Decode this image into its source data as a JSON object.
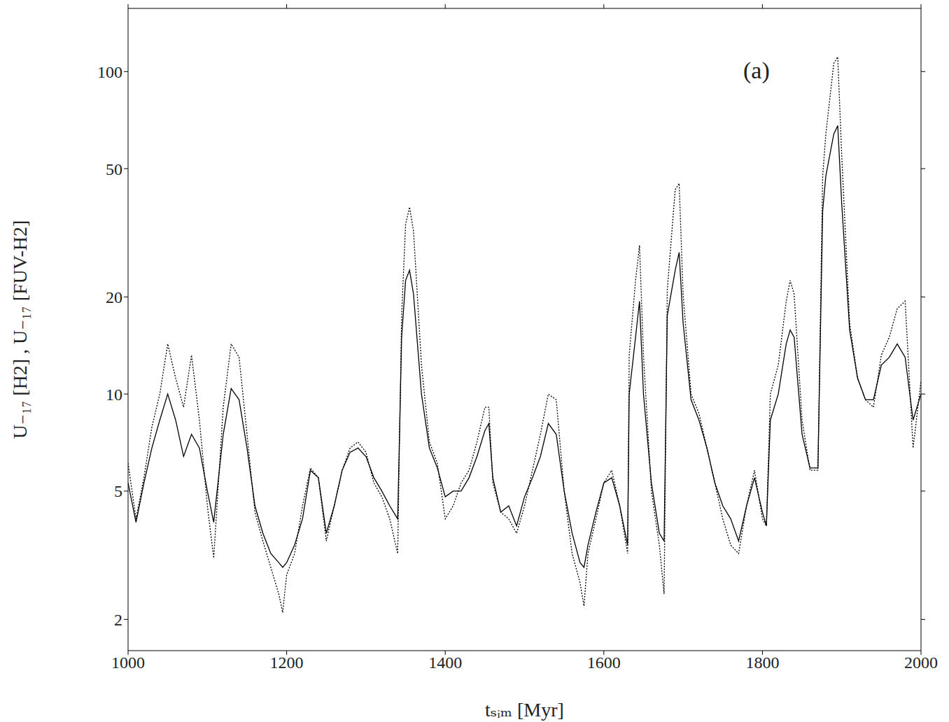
{
  "chart_data": {
    "type": "line",
    "xlabel": "tₛᵢₘ [Myr]",
    "ylabel": "U₋₁₇ [H2] , U₋₁₇ [FUV-H2]",
    "annotation": "(a)",
    "log": "y",
    "grid": false,
    "x": [
      1000,
      1010,
      1020,
      1030,
      1040,
      1050,
      1060,
      1070,
      1080,
      1090,
      1100,
      1108,
      1120,
      1130,
      1140,
      1150,
      1160,
      1170,
      1180,
      1190,
      1195,
      1200,
      1210,
      1220,
      1230,
      1240,
      1250,
      1260,
      1270,
      1280,
      1290,
      1300,
      1310,
      1320,
      1330,
      1340,
      1345,
      1350,
      1355,
      1360,
      1370,
      1380,
      1390,
      1400,
      1410,
      1420,
      1430,
      1440,
      1450,
      1455,
      1460,
      1470,
      1480,
      1490,
      1500,
      1510,
      1520,
      1530,
      1540,
      1550,
      1560,
      1570,
      1575,
      1580,
      1590,
      1600,
      1610,
      1620,
      1630,
      1632,
      1640,
      1645,
      1650,
      1660,
      1670,
      1676,
      1680,
      1690,
      1695,
      1700,
      1710,
      1720,
      1730,
      1740,
      1750,
      1760,
      1770,
      1780,
      1790,
      1800,
      1805,
      1810,
      1820,
      1830,
      1835,
      1840,
      1850,
      1860,
      1870,
      1876,
      1880,
      1890,
      1895,
      1900,
      1910,
      1920,
      1930,
      1940,
      1950,
      1960,
      1970,
      1980,
      1990,
      2000
    ],
    "series": [
      {
        "color": "#000000",
        "line_style": "solid",
        "values": [
          5.3,
          4.0,
          5.3,
          6.8,
          8.3,
          10,
          8.3,
          6.4,
          7.5,
          6.8,
          5.0,
          4.0,
          7.5,
          10.4,
          9.6,
          6.8,
          4.5,
          3.7,
          3.2,
          3.0,
          2.9,
          3.0,
          3.4,
          4.1,
          5.8,
          5.5,
          3.7,
          4.5,
          5.8,
          6.6,
          6.8,
          6.4,
          5.5,
          5.0,
          4.5,
          4.1,
          15,
          22.5,
          24.2,
          20.4,
          10,
          6.8,
          5.9,
          4.8,
          5.0,
          5.0,
          5.5,
          6.4,
          7.7,
          8.1,
          5.5,
          4.3,
          4.5,
          3.9,
          4.8,
          5.5,
          6.4,
          8.1,
          7.5,
          5.0,
          3.7,
          3.0,
          2.9,
          3.4,
          4.3,
          5.3,
          5.5,
          4.5,
          3.4,
          10,
          15,
          19.4,
          10,
          5.3,
          3.7,
          3.5,
          17.5,
          24.2,
          27.5,
          16.6,
          9.6,
          8.3,
          6.8,
          5.3,
          4.5,
          4.1,
          3.5,
          4.5,
          5.5,
          4.3,
          3.9,
          8.3,
          10,
          14.3,
          15.8,
          15,
          7.5,
          5.9,
          5.9,
          37,
          47.5,
          64,
          68,
          39,
          15.8,
          11.2,
          9.6,
          9.6,
          12.3,
          13,
          14.3,
          13,
          8.3,
          10
        ]
      },
      {
        "color": "#000000",
        "line_style": "dotted",
        "values": [
          6.1,
          4.1,
          5.5,
          7.9,
          10,
          14.3,
          11.2,
          9.1,
          13.2,
          8.3,
          4.5,
          3.1,
          9.1,
          14.3,
          13,
          7.5,
          4.3,
          3.5,
          2.9,
          2.4,
          2.1,
          2.75,
          3.2,
          4.5,
          5.9,
          5.5,
          3.5,
          4.5,
          5.8,
          6.8,
          7.1,
          6.6,
          5.3,
          4.8,
          4.1,
          3.2,
          17.5,
          33.6,
          38,
          32,
          12.3,
          7.1,
          6.1,
          4.1,
          4.5,
          5.3,
          5.8,
          7.1,
          9.1,
          9.1,
          5.3,
          4.3,
          4.1,
          3.7,
          4.5,
          5.8,
          7.5,
          10,
          9.6,
          5.0,
          3.2,
          2.6,
          2.2,
          3.2,
          4.1,
          5.3,
          5.8,
          4.5,
          3.2,
          13.2,
          22.5,
          28.9,
          13.2,
          5.0,
          3.4,
          2.4,
          21,
          43,
          45,
          20.4,
          10,
          8.7,
          6.8,
          5.3,
          4.1,
          3.4,
          3.2,
          4.5,
          5.8,
          4.1,
          3.9,
          10,
          12.3,
          19.4,
          22.5,
          20.4,
          8.3,
          5.8,
          5.8,
          47.5,
          64,
          106,
          111,
          55,
          16.6,
          11.2,
          9.6,
          9.1,
          13.2,
          15,
          18.4,
          19.4,
          6.8,
          11
        ]
      }
    ],
    "xlim": [
      1000,
      2000
    ],
    "xticks": [
      1000,
      1200,
      1400,
      1600,
      1800,
      2000
    ],
    "ylim": [
      1.6,
      157
    ],
    "yticks": [
      2,
      5,
      10,
      20,
      50,
      100
    ]
  }
}
